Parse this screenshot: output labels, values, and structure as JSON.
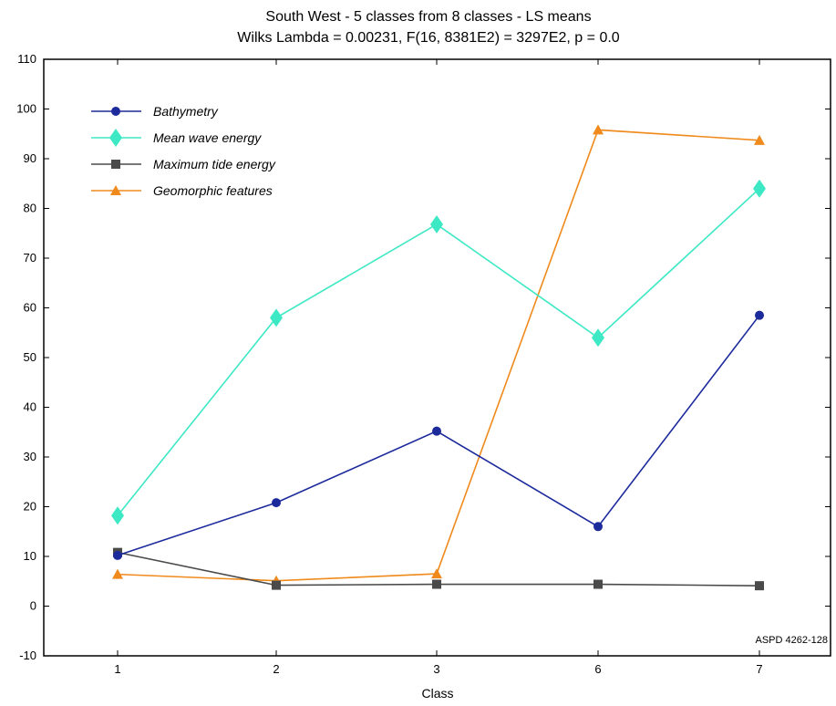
{
  "chart_data": {
    "type": "line",
    "title": "South West - 5 classes from 8 classes - LS means",
    "subtitle": "Wilks Lambda = 0.00231, F(16, 8381E2) = 3297E2, p = 0.0",
    "xlabel": "Class",
    "ylabel": "",
    "categories": [
      "1",
      "2",
      "3",
      "6",
      "7"
    ],
    "ylim": [
      -10,
      110
    ],
    "yticks": [
      -10,
      0,
      10,
      20,
      30,
      40,
      50,
      60,
      70,
      80,
      90,
      100,
      110
    ],
    "grid": false,
    "legend_position": "top-left",
    "annotation": "ASPD 4262-128",
    "series": [
      {
        "name": "Bathymetry",
        "color": "#1c2a9c",
        "marker": "circle",
        "values": [
          10.2,
          20.8,
          35.2,
          16.0,
          58.5
        ]
      },
      {
        "name": "Mean wave energy",
        "color": "#3de8c4",
        "marker": "diamond",
        "values": [
          18.2,
          58.0,
          76.8,
          54.0,
          84.0
        ]
      },
      {
        "name": "Maximum tide energy",
        "color": "#4a4a4a",
        "marker": "square",
        "values": [
          10.8,
          4.2,
          4.4,
          4.4,
          4.1
        ]
      },
      {
        "name": "Geomorphic features",
        "color": "#f08a1c",
        "marker": "triangle",
        "values": [
          6.4,
          5.1,
          6.5,
          95.8,
          93.7
        ]
      }
    ]
  }
}
